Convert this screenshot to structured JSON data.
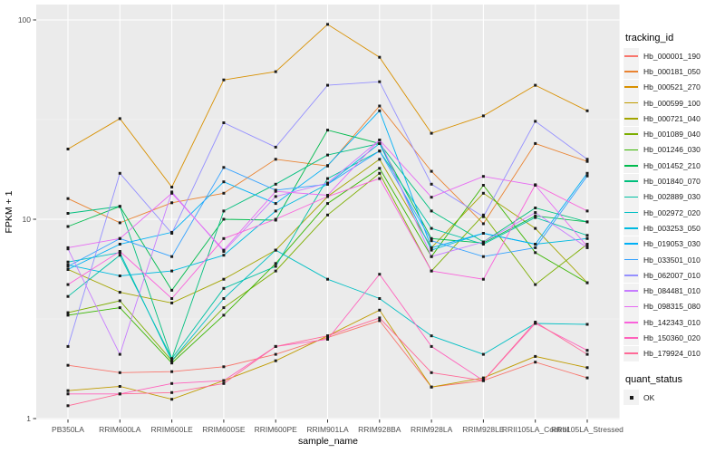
{
  "figure": {
    "background": "#FFFFFF",
    "panel_background": "#EBEBEB",
    "grid_major_color": "#FFFFFF",
    "grid_minor_color": "#F5F5F5",
    "axis_text_color": "#4D4D4D",
    "axis_title_color": "#000000",
    "tick_mark_color": "#333333",
    "point_color": "#1A1A1A",
    "legend_key_background": "#F2F2F2"
  },
  "chart_data": {
    "type": "line",
    "title": "",
    "xlabel": "sample_name",
    "ylabel": "FPKM + 1",
    "y_scale": "log10",
    "y_ticks": [
      "1",
      "10",
      "100"
    ],
    "y_tick_values": [
      1,
      10,
      100
    ],
    "y_minor_values": [
      3.162,
      31.62
    ],
    "ylim": [
      1,
      119
    ],
    "grid": true,
    "legend_position": "right",
    "point_shape": "square",
    "categories": [
      "PB350LA",
      "RRIM600LA",
      "RRIM600LE",
      "RRIM600SE",
      "RRIM600PE",
      "RRIM901LA",
      "RRIM928BA",
      "RRIM928LA",
      "RRIM928LE",
      "RRII105LA_Control",
      "RRII105LA_Stressed"
    ],
    "series": [
      {
        "name": "Hb_000001_190",
        "color": "#F8766D",
        "values": [
          1.85,
          1.7,
          1.72,
          1.82,
          2.1,
          2.55,
          3.1,
          1.44,
          1.55,
          1.92,
          1.6
        ]
      },
      {
        "name": "Hb_000181_050",
        "color": "#EA8331",
        "values": [
          12.7,
          9.6,
          12.1,
          13.5,
          20.0,
          18.5,
          37.0,
          17.4,
          9.5,
          24.0,
          19.5
        ]
      },
      {
        "name": "Hb_000521_270",
        "color": "#D89000",
        "values": [
          22.5,
          32.0,
          14.5,
          50.0,
          55.0,
          95.0,
          65.0,
          27.0,
          33.0,
          47.0,
          35.0
        ]
      },
      {
        "name": "Hb_000599_100",
        "color": "#C09B00",
        "values": [
          1.38,
          1.45,
          1.25,
          1.55,
          1.95,
          2.6,
          3.5,
          1.44,
          1.6,
          2.05,
          1.8
        ]
      },
      {
        "name": "Hb_000721_040",
        "color": "#A3A500",
        "values": [
          5.6,
          4.3,
          3.8,
          5.0,
          7.0,
          13.0,
          20.0,
          7.2,
          13.5,
          9.0,
          4.8
        ]
      },
      {
        "name": "Hb_001089_040",
        "color": "#7CAE00",
        "values": [
          3.4,
          3.9,
          1.95,
          3.6,
          5.5,
          10.5,
          17.0,
          5.5,
          10.5,
          4.7,
          7.5
        ]
      },
      {
        "name": "Hb_001246_030",
        "color": "#39B600",
        "values": [
          3.3,
          3.6,
          1.9,
          3.3,
          6.0,
          12.0,
          18.0,
          6.5,
          14.8,
          6.8,
          4.8
        ]
      },
      {
        "name": "Hb_001452_210",
        "color": "#00BB4E",
        "values": [
          9.2,
          11.6,
          4.4,
          10.0,
          9.9,
          28.0,
          24.0,
          8.0,
          7.6,
          10.4,
          9.7
        ]
      },
      {
        "name": "Hb_001840_070",
        "color": "#00BF7D",
        "values": [
          10.7,
          11.6,
          2.0,
          11.0,
          15.0,
          21.0,
          24.0,
          11.0,
          7.7,
          11.4,
          9.7
        ]
      },
      {
        "name": "Hb_002889_030",
        "color": "#00C1A3",
        "values": [
          4.1,
          6.6,
          2.0,
          4.5,
          5.8,
          16.0,
          22.0,
          9.0,
          7.5,
          10.2,
          8.3
        ]
      },
      {
        "name": "Hb_002972_020",
        "color": "#00BFC4",
        "values": [
          6.1,
          6.8,
          1.95,
          4.0,
          7.0,
          5.0,
          4.0,
          2.6,
          2.1,
          3.0,
          2.97
        ]
      },
      {
        "name": "Hb_003253_050",
        "color": "#00BAE0",
        "values": [
          5.9,
          5.2,
          5.5,
          6.6,
          11.0,
          15.0,
          24.0,
          7.0,
          8.5,
          7.5,
          8.0
        ]
      },
      {
        "name": "Hb_019053_030",
        "color": "#00B0F6",
        "values": [
          5.6,
          7.5,
          8.6,
          15.4,
          12.0,
          18.6,
          35.0,
          7.2,
          8.5,
          7.5,
          17.0
        ]
      },
      {
        "name": "Hb_033501_010",
        "color": "#35A2FF",
        "values": [
          5.8,
          8.0,
          6.5,
          18.2,
          14.0,
          15.0,
          22.0,
          7.8,
          6.5,
          7.2,
          16.5
        ]
      },
      {
        "name": "Hb_062007_010",
        "color": "#9590FF",
        "values": [
          2.3,
          17.0,
          8.5,
          30.5,
          23.0,
          47.0,
          49.0,
          15.0,
          10.3,
          31.0,
          20.0
        ]
      },
      {
        "name": "Hb_084481_010",
        "color": "#C77CFF",
        "values": [
          7.1,
          2.1,
          13.7,
          6.9,
          13.0,
          15.2,
          25.0,
          6.5,
          7.7,
          10.8,
          7.2
        ]
      },
      {
        "name": "Hb_098315_080",
        "color": "#E76BF3",
        "values": [
          7.2,
          8.0,
          13.5,
          7.0,
          13.8,
          13.2,
          25.0,
          12.9,
          16.4,
          14.8,
          7.3
        ]
      },
      {
        "name": "Hb_142343_010",
        "color": "#FA62DB",
        "values": [
          4.7,
          6.9,
          4.0,
          8.0,
          10.0,
          13.0,
          16.0,
          5.5,
          5.0,
          14.9,
          11.0
        ]
      },
      {
        "name": "Hb_150360_020",
        "color": "#FF62BC",
        "values": [
          1.33,
          1.33,
          1.5,
          1.55,
          2.3,
          2.5,
          5.3,
          2.3,
          1.55,
          3.0,
          2.2
        ]
      },
      {
        "name": "Hb_179924_010",
        "color": "#FF6A98",
        "values": [
          1.16,
          1.33,
          1.35,
          1.5,
          2.3,
          2.6,
          3.2,
          1.7,
          1.55,
          3.05,
          2.1
        ]
      }
    ],
    "legend": {
      "tracking_title": "tracking_id",
      "quant_title": "quant_status",
      "quant_items": [
        {
          "label": "OK",
          "shape": "square",
          "color": "#1A1A1A"
        }
      ]
    }
  }
}
